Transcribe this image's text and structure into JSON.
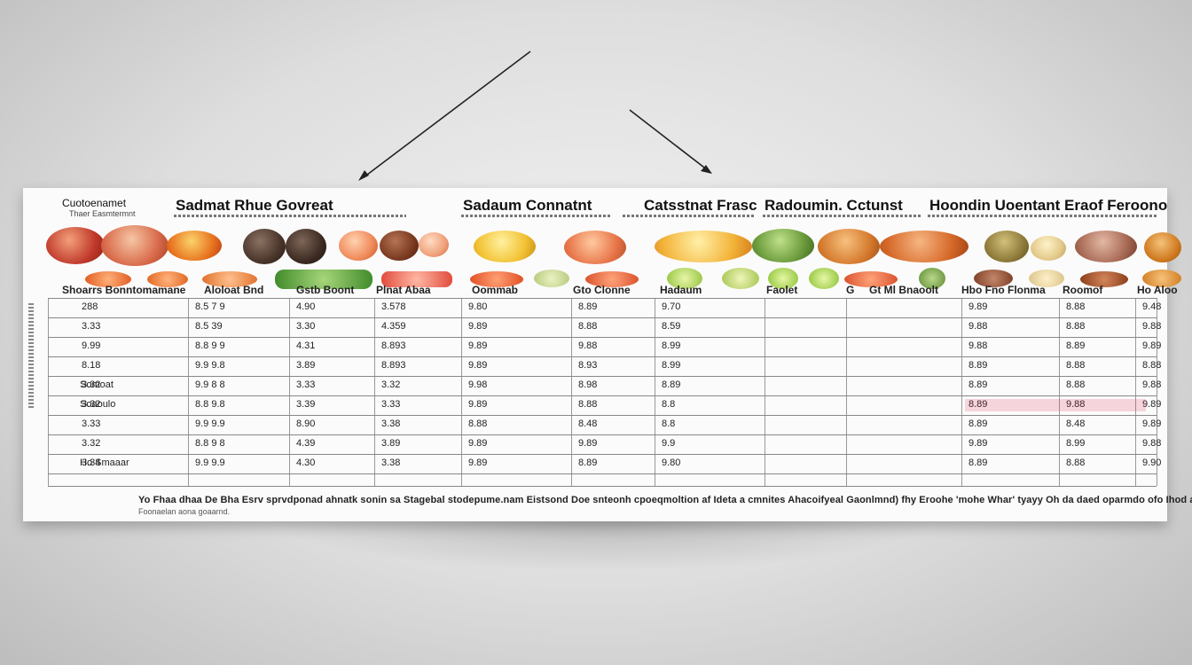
{
  "brand": {
    "name": "Cuotoenamet",
    "tagline": "Thaer Easmtermnt"
  },
  "titles": [
    "Sadmat Rhue Govreat",
    "Sadaum Connatnt",
    "Catsstnat Frasc",
    "Radoumin. Cctunst",
    "Hoondin Uoentant Eraof Feroono"
  ],
  "headers": [
    "Shoarrs Bonntomamane",
    "Aloloat Bnd",
    "Gstb Boont",
    "Plnat Abaa",
    "Oommab",
    "Gto Clonne",
    "Hadaum",
    "Faolet",
    "G",
    "Gt Ml Bnaoolt",
    "Hbo Fno Flonma",
    "Roomof",
    "Ho Aloo"
  ],
  "row_labels": [
    "Somoat",
    "Soaoulo",
    "Ho Smaaar"
  ],
  "rows": [
    [
      "288",
      "8.5 7 9",
      "4.90",
      "3.578",
      "9.80",
      "8.89",
      "9.70",
      "",
      "",
      "9.89",
      "8.88",
      "9.48"
    ],
    [
      "3.33",
      "8.5 39",
      "3.30",
      "4.359",
      "9.89",
      "8.88",
      "8.59",
      "",
      "",
      "9.88",
      "8.88",
      "9.88"
    ],
    [
      "9.99",
      "8.8 9 9",
      "4.31",
      "8.893",
      "9.89",
      "9.88",
      "8.99",
      "",
      "",
      "9.88",
      "8.89",
      "9.89"
    ],
    [
      "8.18",
      "9.9 9.8",
      "3.89",
      "8.893",
      "9.89",
      "8.93",
      "8.99",
      "",
      "",
      "8.89",
      "8.88",
      "8.88"
    ],
    [
      "3.32",
      "9.9 8 8",
      "3.33",
      "3.32",
      "9.98",
      "8.98",
      "8.89",
      "",
      "",
      "8.89",
      "8.88",
      "9.88"
    ],
    [
      "3.32",
      "8.8 9.8",
      "3.39",
      "3.33",
      "9.89",
      "8.88",
      "8.8",
      "",
      "",
      "8.89",
      "9.88",
      "9.89"
    ],
    [
      "3.33",
      "9.9 9.9",
      "8.90",
      "3.38",
      "8.88",
      "8.48",
      "8.8",
      "",
      "",
      "8.89",
      "8.48",
      "9.89"
    ],
    [
      "3.32",
      "8.8 9 8",
      "4.39",
      "3.89",
      "9.89",
      "9.89",
      "9.9",
      "",
      "",
      "9.89",
      "8.99",
      "9.88"
    ],
    [
      "3.34",
      "9.9 9.9",
      "4.30",
      "3.38",
      "9.89",
      "8.89",
      "9.80",
      "",
      "",
      "8.89",
      "8.88",
      "9.90"
    ]
  ],
  "footnote": "Yo Fhaa dhaa De Bha Esrv sprvdponad ahnatk sonin sa Stagebal stodepume.nam Eistsond Doe snteonh cpoeqmoltion af Ideta a cmnites Ahacoifyeal Gaonlmnd) fhy Eroohe 'mohe Whar' tyayy Oh da daed oparmdo ofo Ihod ae dorenoal",
  "footnote2": "Foonaelan aona goaarnd.",
  "colors": {
    "accent_red": "#e0274d",
    "text": "#111111"
  }
}
